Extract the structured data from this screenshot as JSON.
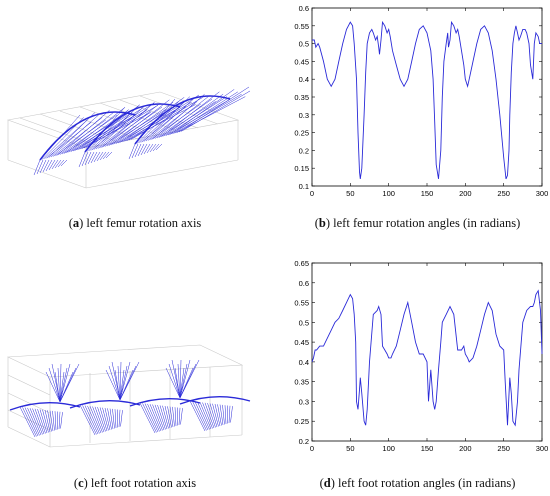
{
  "captions": {
    "a_letter": "a",
    "a_text": "left femur rotation axis",
    "b_letter": "b",
    "b_text": "left femur rotation angles (in radians)",
    "c_letter": "c",
    "c_text": "left foot rotation axis",
    "d_letter": "d",
    "d_text": "left foot rotation angles (in radians)"
  },
  "colors": {
    "line": "#2a2ad8",
    "axis": "#000000",
    "grid3d": "#c8c8c8"
  },
  "chart_data": [
    {
      "type": "line",
      "panel": "b",
      "xlim": [
        0,
        300
      ],
      "ylim": [
        0.1,
        0.6
      ],
      "xticks": [
        0,
        50,
        100,
        150,
        200,
        250,
        300
      ],
      "yticks": [
        0.1,
        0.15,
        0.2,
        0.25,
        0.3,
        0.35,
        0.4,
        0.45,
        0.5,
        0.55,
        0.6
      ],
      "ytick_labels": [
        "0.1",
        "0.15",
        "0.2",
        "0.25",
        "0.3",
        "0.35",
        "0.4",
        "0.45",
        "0.5",
        "0.55",
        "0.6"
      ],
      "x": [
        0,
        3,
        5,
        8,
        10,
        15,
        20,
        25,
        30,
        35,
        40,
        45,
        50,
        53,
        55,
        58,
        60,
        62,
        63,
        65,
        68,
        70,
        72,
        75,
        78,
        80,
        83,
        85,
        87,
        88,
        90,
        92,
        95,
        98,
        100,
        102,
        105,
        110,
        115,
        120,
        125,
        130,
        135,
        140,
        145,
        150,
        155,
        158,
        160,
        162,
        165,
        168,
        170,
        172,
        175,
        177,
        178,
        180,
        182,
        185,
        188,
        190,
        192,
        195,
        198,
        200,
        203,
        205,
        210,
        215,
        220,
        225,
        230,
        235,
        240,
        245,
        250,
        253,
        255,
        257,
        258,
        260,
        262,
        264,
        266,
        268,
        270,
        272,
        275,
        278,
        280,
        283,
        285,
        288,
        290,
        292,
        295,
        297,
        300
      ],
      "series": [
        {
          "values": [
            0.51,
            0.51,
            0.49,
            0.5,
            0.49,
            0.45,
            0.4,
            0.38,
            0.4,
            0.45,
            0.5,
            0.54,
            0.56,
            0.55,
            0.5,
            0.4,
            0.25,
            0.14,
            0.12,
            0.15,
            0.3,
            0.42,
            0.5,
            0.53,
            0.54,
            0.53,
            0.51,
            0.52,
            0.49,
            0.47,
            0.51,
            0.56,
            0.55,
            0.53,
            0.54,
            0.52,
            0.48,
            0.44,
            0.4,
            0.38,
            0.4,
            0.45,
            0.5,
            0.54,
            0.55,
            0.53,
            0.48,
            0.4,
            0.28,
            0.16,
            0.12,
            0.2,
            0.35,
            0.45,
            0.5,
            0.53,
            0.49,
            0.51,
            0.56,
            0.55,
            0.53,
            0.54,
            0.52,
            0.48,
            0.44,
            0.4,
            0.38,
            0.4,
            0.45,
            0.5,
            0.54,
            0.55,
            0.53,
            0.48,
            0.4,
            0.3,
            0.18,
            0.12,
            0.13,
            0.2,
            0.3,
            0.42,
            0.5,
            0.53,
            0.55,
            0.53,
            0.51,
            0.52,
            0.54,
            0.54,
            0.53,
            0.5,
            0.44,
            0.4,
            0.5,
            0.53,
            0.52,
            0.5,
            0.5
          ]
        }
      ]
    },
    {
      "type": "line",
      "panel": "d",
      "xlim": [
        0,
        300
      ],
      "ylim": [
        0.2,
        0.65
      ],
      "xticks": [
        0,
        50,
        100,
        150,
        200,
        250,
        300
      ],
      "yticks": [
        0.2,
        0.25,
        0.3,
        0.35,
        0.4,
        0.45,
        0.5,
        0.55,
        0.6,
        0.65
      ],
      "ytick_labels": [
        "0.2",
        "0.25",
        "0.3",
        "0.35",
        "0.4",
        "0.45",
        "0.5",
        "0.55",
        "0.6",
        "0.65"
      ],
      "x": [
        0,
        2,
        4,
        6,
        10,
        15,
        20,
        25,
        30,
        35,
        40,
        45,
        50,
        53,
        55,
        57,
        58,
        60,
        62,
        63,
        65,
        68,
        70,
        72,
        75,
        80,
        85,
        87,
        90,
        92,
        95,
        98,
        100,
        103,
        105,
        110,
        115,
        120,
        125,
        130,
        135,
        140,
        145,
        150,
        152,
        155,
        158,
        160,
        162,
        165,
        168,
        170,
        175,
        180,
        185,
        190,
        195,
        198,
        200,
        203,
        205,
        210,
        215,
        220,
        225,
        230,
        235,
        240,
        245,
        250,
        252,
        255,
        258,
        260,
        262,
        265,
        268,
        270,
        275,
        280,
        285,
        288,
        290,
        292,
        295,
        298,
        300
      ],
      "series": [
        {
          "values": [
            0.4,
            0.41,
            0.43,
            0.43,
            0.44,
            0.44,
            0.46,
            0.48,
            0.5,
            0.51,
            0.53,
            0.55,
            0.57,
            0.56,
            0.52,
            0.45,
            0.3,
            0.28,
            0.33,
            0.36,
            0.32,
            0.25,
            0.24,
            0.28,
            0.4,
            0.52,
            0.53,
            0.54,
            0.52,
            0.44,
            0.43,
            0.42,
            0.41,
            0.41,
            0.42,
            0.44,
            0.48,
            0.52,
            0.55,
            0.5,
            0.45,
            0.42,
            0.42,
            0.4,
            0.3,
            0.38,
            0.3,
            0.28,
            0.3,
            0.38,
            0.45,
            0.5,
            0.52,
            0.54,
            0.52,
            0.43,
            0.43,
            0.44,
            0.42,
            0.41,
            0.4,
            0.41,
            0.44,
            0.48,
            0.52,
            0.55,
            0.53,
            0.47,
            0.44,
            0.43,
            0.35,
            0.24,
            0.36,
            0.32,
            0.25,
            0.24,
            0.3,
            0.38,
            0.5,
            0.53,
            0.54,
            0.54,
            0.55,
            0.57,
            0.58,
            0.53,
            0.42
          ]
        }
      ]
    }
  ]
}
